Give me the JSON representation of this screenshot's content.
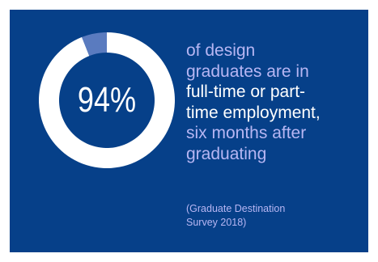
{
  "colors": {
    "background": "#064089",
    "ring_main": "#ffffff",
    "ring_remainder": "#5a7bbf",
    "accent_text": "#b7b6f3",
    "highlight_text": "#ffffff"
  },
  "chart_data": {
    "type": "pie",
    "style": "donut",
    "slices": [
      {
        "value": 94,
        "color": "#ffffff"
      },
      {
        "value": 6,
        "color": "#5a7bbf"
      }
    ],
    "center_label": "94%"
  },
  "text": {
    "line1": "of design",
    "line2": "graduates are in",
    "line3": "full-time or part-",
    "line4": "time employment,",
    "line5": "six months after",
    "line6": "graduating",
    "source_line1": "(Graduate Destination",
    "source_line2": "Survey 2018)"
  }
}
